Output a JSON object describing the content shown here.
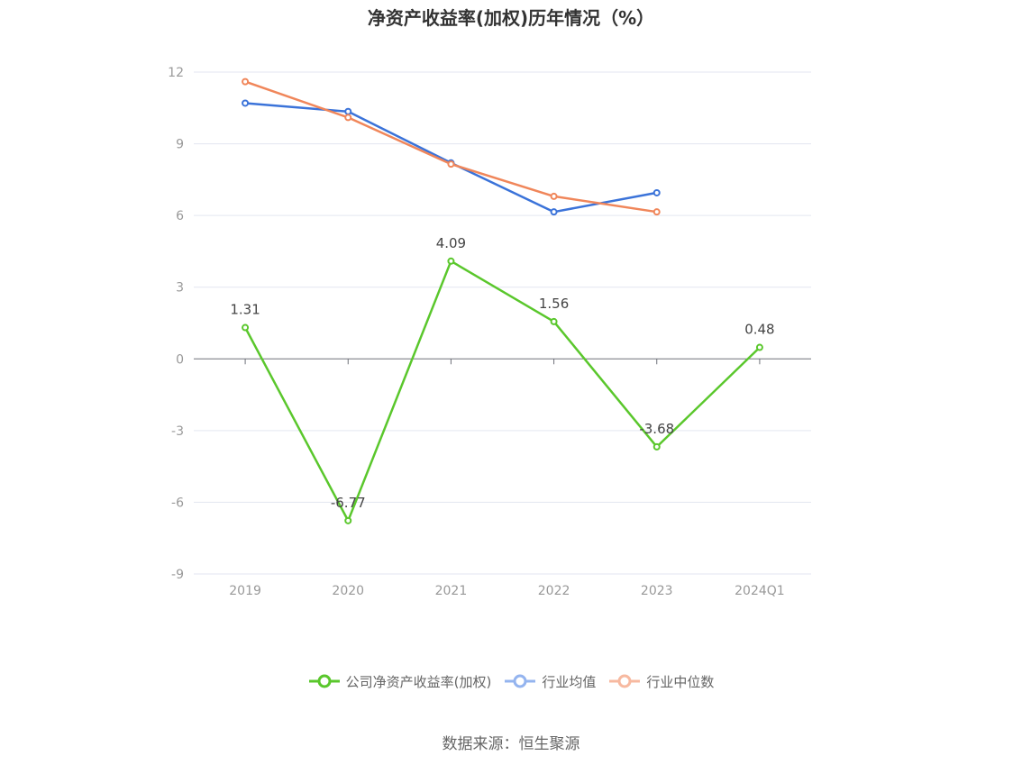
{
  "chart_data": {
    "type": "line",
    "title": "净资产收益率(加权)历年情况（%）",
    "categories": [
      "2019",
      "2020",
      "2021",
      "2022",
      "2023",
      "2024Q1"
    ],
    "ylim": [
      -9,
      12
    ],
    "yticks": [
      12,
      9,
      6,
      3,
      0,
      -3,
      -6,
      -9
    ],
    "grid": true,
    "legend_position": "bottom",
    "series": [
      {
        "name": "公司净资产收益率(加权)",
        "color": "#5ac72c",
        "values": [
          1.31,
          -6.77,
          4.09,
          1.56,
          -3.68,
          0.48
        ],
        "labels": [
          "1.31",
          "-6.77",
          "4.09",
          "1.56",
          "-3.68",
          "0.48"
        ],
        "show_labels": true
      },
      {
        "name": "行业均值",
        "color": "#3b73d9",
        "values": [
          10.7,
          10.35,
          8.2,
          6.15,
          6.95,
          null
        ],
        "show_labels": false
      },
      {
        "name": "行业中位数",
        "color": "#f0865a",
        "values": [
          11.6,
          10.1,
          8.15,
          6.8,
          6.15,
          null
        ],
        "show_labels": false
      }
    ]
  },
  "legend_colors": [
    "#5ac72c",
    "#94b4ef",
    "#f7b9a0"
  ],
  "source_note": "数据来源：恒生聚源"
}
